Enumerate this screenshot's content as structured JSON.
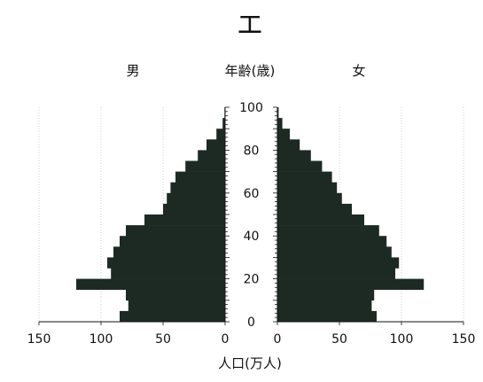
{
  "chart_data": {
    "type": "bar",
    "orientation": "horizontal-pyramid",
    "title": "エ",
    "left_label": "男",
    "center_label": "年齢(歳)",
    "right_label": "女",
    "xlabel": "人口(万人)",
    "y_ticks": [
      "0",
      "20",
      "40",
      "60",
      "80",
      "100"
    ],
    "x_ticks_left": [
      "150",
      "100",
      "50",
      "0"
    ],
    "x_ticks_right": [
      "0",
      "50",
      "100",
      "150"
    ],
    "age_range": [
      0,
      100
    ],
    "xlim": [
      0,
      150
    ],
    "grid": true,
    "bar_color": "#1d2a24",
    "series": [
      {
        "name": "男",
        "age_groups": [
          "0-4",
          "5-9",
          "10-14",
          "15-19",
          "20-24",
          "25-29",
          "30-34",
          "35-39",
          "40-44",
          "45-49",
          "50-54",
          "55-59",
          "60-64",
          "65-69",
          "70-74",
          "75-79",
          "80-84",
          "85-89",
          "90-94",
          "95-99"
        ],
        "values": [
          85,
          78,
          80,
          120,
          92,
          95,
          90,
          85,
          80,
          65,
          50,
          47,
          44,
          40,
          32,
          22,
          15,
          7,
          2,
          0.5
        ]
      },
      {
        "name": "女",
        "age_groups": [
          "0-4",
          "5-9",
          "10-14",
          "15-19",
          "20-24",
          "25-29",
          "30-34",
          "35-39",
          "40-44",
          "45-49",
          "50-54",
          "55-59",
          "60-64",
          "65-69",
          "70-74",
          "75-79",
          "80-84",
          "85-89",
          "90-94",
          "95-99"
        ],
        "values": [
          80,
          76,
          78,
          118,
          95,
          98,
          92,
          88,
          82,
          70,
          60,
          52,
          48,
          44,
          36,
          27,
          18,
          10,
          4,
          1
        ]
      }
    ]
  }
}
